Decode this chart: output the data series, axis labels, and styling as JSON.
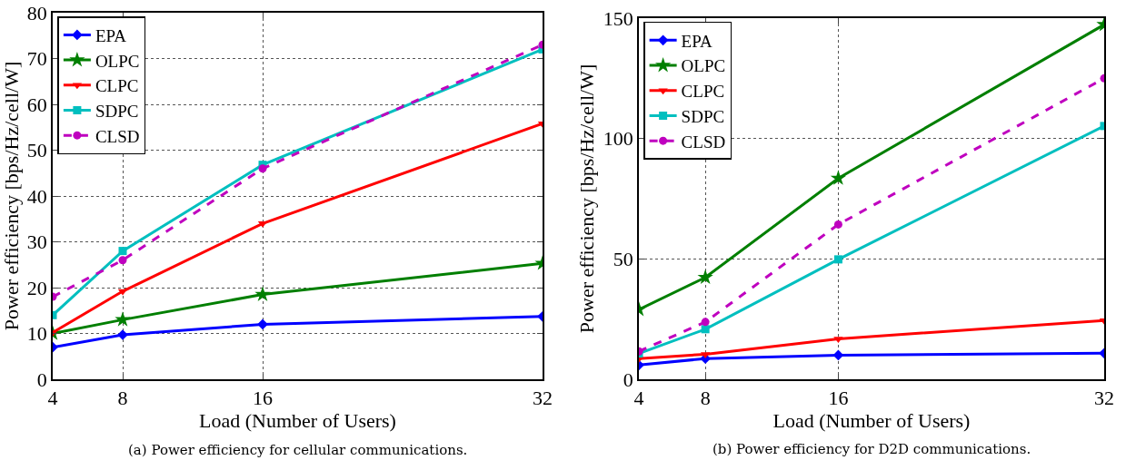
{
  "chart_data": [
    {
      "type": "line",
      "xlabel": "Load (Number of Users)",
      "ylabel": "Power efficiency [bps/Hz/cell/W]",
      "x": [
        4,
        8,
        16,
        32
      ],
      "xlim": [
        4,
        32
      ],
      "xticks": [
        4,
        8,
        16,
        32
      ],
      "ylim": [
        0,
        80
      ],
      "yticks": [
        0,
        10,
        20,
        30,
        40,
        50,
        60,
        70,
        80
      ],
      "grid": true,
      "legend": "top left",
      "annotations": [
        "(a) Power efficiency for cellular communications."
      ],
      "series": [
        {
          "name": "EPA",
          "color": "#0000ff",
          "marker": "diamond",
          "line_style": "solid",
          "values": [
            7,
            9.7,
            12,
            13.7
          ]
        },
        {
          "name": "OLPC",
          "color": "#007f00",
          "marker": "star",
          "line_style": "solid",
          "values": [
            10,
            13,
            18.5,
            25.3
          ]
        },
        {
          "name": "CLPC",
          "color": "#ff0000",
          "marker": "triangle",
          "line_style": "solid",
          "values": [
            10.2,
            19.2,
            34,
            55.8
          ]
        },
        {
          "name": "SDPC",
          "color": "#00bfbf",
          "marker": "square",
          "line_style": "solid",
          "values": [
            14,
            28,
            46.8,
            72
          ]
        },
        {
          "name": "CLSD",
          "color": "#bf00bf",
          "marker": "circle",
          "line_style": "dashed",
          "values": [
            18,
            26,
            46,
            73
          ]
        }
      ]
    },
    {
      "type": "line",
      "xlabel": "Load (Number of Users)",
      "ylabel": "Power efficiency [bps/Hz/cell/W]",
      "x": [
        4,
        8,
        16,
        32
      ],
      "xlim": [
        4,
        32
      ],
      "xticks": [
        4,
        8,
        16,
        32
      ],
      "ylim": [
        0,
        150
      ],
      "yticks": [
        0,
        50,
        100,
        150
      ],
      "grid": true,
      "legend": "top left",
      "annotations": [
        "(b) Power efficiency for D2D communications."
      ],
      "series": [
        {
          "name": "EPA",
          "color": "#0000ff",
          "marker": "diamond",
          "line_style": "solid",
          "values": [
            5.9,
            8.6,
            10,
            10.8
          ]
        },
        {
          "name": "OLPC",
          "color": "#007f00",
          "marker": "star",
          "line_style": "solid",
          "values": [
            29,
            42.3,
            83.5,
            147.3
          ]
        },
        {
          "name": "CLPC",
          "color": "#ff0000",
          "marker": "triangle",
          "line_style": "solid",
          "values": [
            8.6,
            10.4,
            16.8,
            24.4
          ]
        },
        {
          "name": "SDPC",
          "color": "#00bfbf",
          "marker": "square",
          "line_style": "solid",
          "values": [
            10.7,
            20.8,
            49.8,
            105.2
          ]
        },
        {
          "name": "CLSD",
          "color": "#bf00bf",
          "marker": "circle",
          "line_style": "dashed",
          "values": [
            11.6,
            23.8,
            64.3,
            125
          ]
        }
      ]
    }
  ]
}
